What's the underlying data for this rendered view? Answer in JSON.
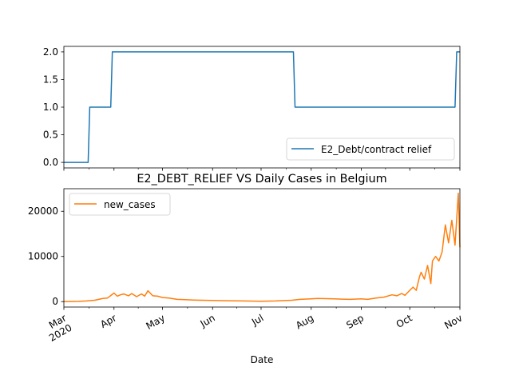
{
  "chart_data": [
    {
      "type": "line",
      "title": "",
      "xlabel": "",
      "ylabel": "",
      "x_range": [
        "2020-03-01",
        "2020-11-01"
      ],
      "ylim": [
        -0.1,
        2.1
      ],
      "yticks": [
        0.0,
        0.5,
        1.0,
        1.5,
        2.0
      ],
      "ytick_labels": [
        "0.0",
        "0.5",
        "1.0",
        "1.5",
        "2.0"
      ],
      "grid": false,
      "legend_position": "lower-right",
      "series": [
        {
          "name": "E2_Debt/contract relief",
          "color": "#1f77b4",
          "x": [
            "2020-03-01",
            "2020-03-16",
            "2020-03-17",
            "2020-03-30",
            "2020-03-31",
            "2020-07-21",
            "2020-07-22",
            "2020-10-29",
            "2020-10-30",
            "2020-11-01"
          ],
          "values": [
            0,
            0,
            1,
            1,
            2,
            2,
            1,
            1,
            2,
            2
          ]
        }
      ]
    },
    {
      "type": "line",
      "title": "E2_DEBT_RELIEF VS Daily Cases in Belgium",
      "xlabel": "Date",
      "ylabel": "",
      "x_range": [
        "2020-03-01",
        "2020-11-01"
      ],
      "ylim": [
        -1200,
        25000
      ],
      "yticks": [
        0,
        10000,
        20000
      ],
      "ytick_labels": [
        "0",
        "10000",
        "20000"
      ],
      "xticks": [
        "2020-03-01",
        "2020-04-01",
        "2020-05-01",
        "2020-06-01",
        "2020-07-01",
        "2020-08-01",
        "2020-09-01",
        "2020-10-01",
        "2020-11-01"
      ],
      "xtick_labels": [
        "Mar\n2020",
        "Apr",
        "May",
        "Jun",
        "Jul",
        "Aug",
        "Sep",
        "Oct",
        "Nov"
      ],
      "grid": false,
      "legend_position": "upper-left",
      "series": [
        {
          "name": "new_cases",
          "color": "#ff7f0e",
          "x": [
            "2020-03-01",
            "2020-03-10",
            "2020-03-15",
            "2020-03-20",
            "2020-03-25",
            "2020-03-28",
            "2020-04-01",
            "2020-04-03",
            "2020-04-05",
            "2020-04-07",
            "2020-04-10",
            "2020-04-12",
            "2020-04-15",
            "2020-04-18",
            "2020-04-20",
            "2020-04-22",
            "2020-04-25",
            "2020-04-28",
            "2020-05-01",
            "2020-05-05",
            "2020-05-10",
            "2020-05-15",
            "2020-05-20",
            "2020-05-25",
            "2020-06-01",
            "2020-06-10",
            "2020-06-20",
            "2020-07-01",
            "2020-07-10",
            "2020-07-20",
            "2020-07-25",
            "2020-08-01",
            "2020-08-05",
            "2020-08-10",
            "2020-08-15",
            "2020-08-20",
            "2020-08-25",
            "2020-09-01",
            "2020-09-05",
            "2020-09-10",
            "2020-09-15",
            "2020-09-20",
            "2020-09-23",
            "2020-09-26",
            "2020-09-28",
            "2020-10-01",
            "2020-10-03",
            "2020-10-05",
            "2020-10-07",
            "2020-10-08",
            "2020-10-10",
            "2020-10-12",
            "2020-10-14",
            "2020-10-15",
            "2020-10-17",
            "2020-10-19",
            "2020-10-21",
            "2020-10-23",
            "2020-10-25",
            "2020-10-27",
            "2020-10-29",
            "2020-10-31",
            "2020-11-01"
          ],
          "values": [
            0,
            50,
            150,
            300,
            700,
            800,
            1900,
            1200,
            1500,
            1700,
            1300,
            1800,
            1100,
            1700,
            1200,
            2400,
            1300,
            1200,
            900,
            800,
            500,
            450,
            350,
            300,
            250,
            200,
            150,
            100,
            150,
            300,
            500,
            600,
            700,
            650,
            600,
            550,
            500,
            600,
            500,
            800,
            1000,
            1500,
            1300,
            1800,
            1400,
            2500,
            3200,
            2500,
            5500,
            6500,
            5000,
            8000,
            4000,
            9000,
            10000,
            9000,
            11000,
            17000,
            13000,
            18000,
            12500,
            24000,
            12000
          ]
        }
      ]
    }
  ]
}
